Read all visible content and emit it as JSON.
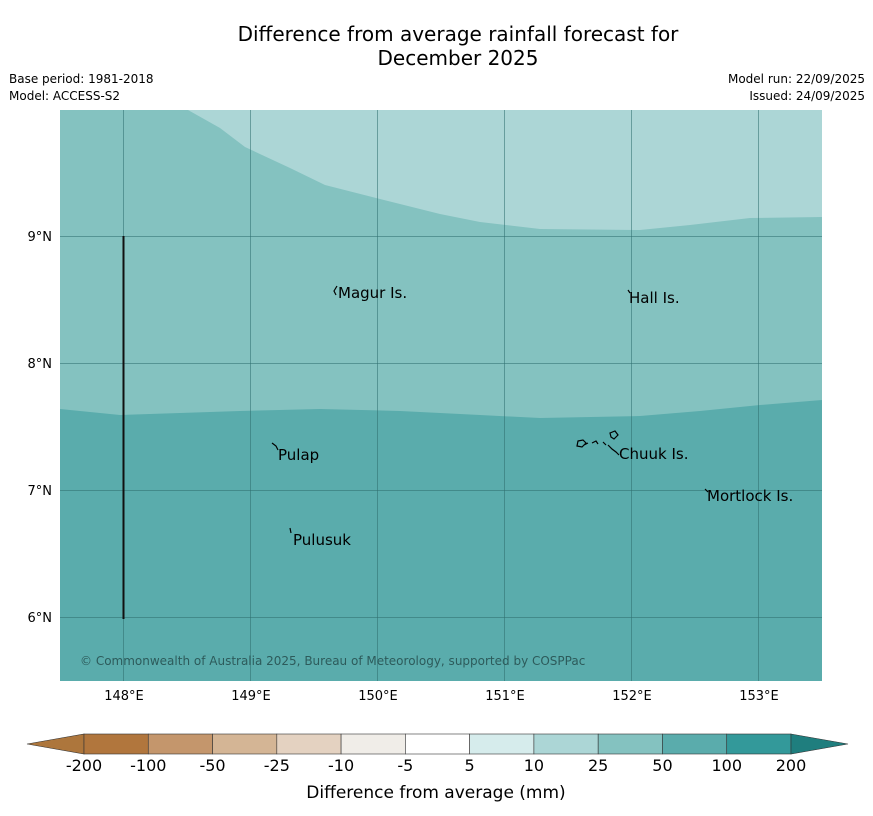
{
  "title_line1": "Difference from average rainfall forecast for",
  "title_line2": "December 2025",
  "base_period": "Base period: 1981-2018",
  "model": "Model: ACCESS-S2",
  "model_run": "Model run: 22/09/2025",
  "issued": "Issued: 24/09/2025",
  "copyright": "© Commonwealth of Australia 2025, Bureau of Meteorology, supported by COSPPac",
  "lat_labels": [
    "9°N",
    "8°N",
    "7°N",
    "6°N"
  ],
  "lon_labels": [
    "148°E",
    "149°E",
    "150°E",
    "151°E",
    "152°E",
    "153°E"
  ],
  "places": [
    {
      "name": "Magur Is."
    },
    {
      "name": "Hall Is."
    },
    {
      "name": "Pulap"
    },
    {
      "name": "Chuuk Is."
    },
    {
      "name": "Mortlock Is."
    },
    {
      "name": "Pulusuk"
    }
  ],
  "colorbar": {
    "title": "Difference from average (mm)",
    "labels": [
      "-200",
      "-100",
      "-50",
      "-25",
      "-10",
      "-5",
      "5",
      "10",
      "25",
      "50",
      "100",
      "200"
    ],
    "colors": [
      "#ad763c",
      "#b1763d",
      "#c4966c",
      "#d4b595",
      "#e4d2c1",
      "#f0ede8",
      "#ffffff",
      "#d6ecec",
      "#acd6d6",
      "#84c2c0",
      "#5aacac",
      "#33999a",
      "#1f7e7e"
    ]
  },
  "map_colors": {
    "band_10_25": "#acd6d6",
    "band_25_50": "#84c2c0",
    "band_50_100": "#5aacac",
    "grid": "#2f6f6f"
  }
}
